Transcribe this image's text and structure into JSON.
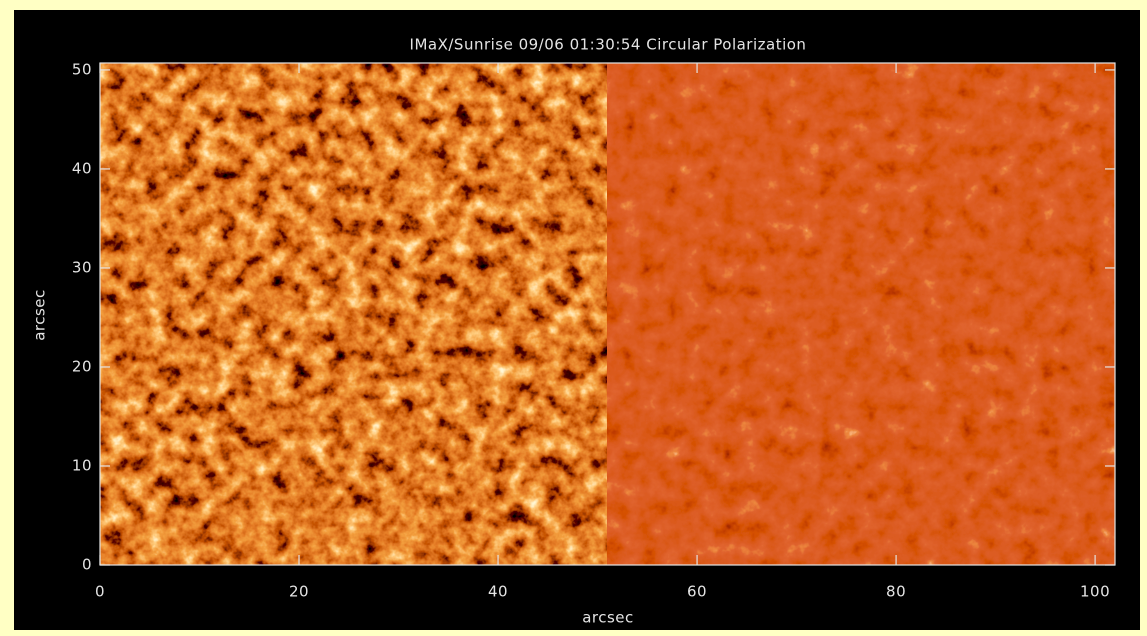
{
  "chart_data": {
    "type": "image",
    "title": "IMaX/Sunrise 09/06 01:30:54 Circular Polarization",
    "x_label": "arcsec",
    "y_label": "arcsec",
    "xlim": [
      0,
      102
    ],
    "ylim": [
      0,
      50.7
    ],
    "xticks": [
      0,
      20,
      40,
      60,
      80,
      100
    ],
    "yticks": [
      0,
      10,
      20,
      30,
      40,
      50
    ]
  }
}
